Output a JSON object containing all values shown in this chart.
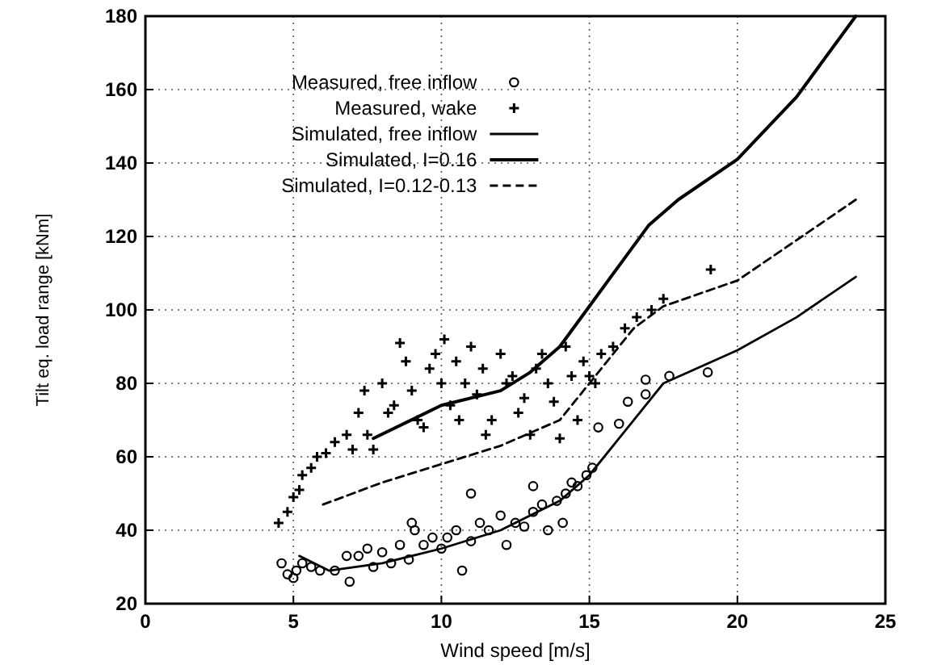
{
  "chart_data": {
    "type": "scatter",
    "xlabel": "Wind speed [m/s]",
    "ylabel": "Tilt eq. load range [kNm]",
    "xlim": [
      0,
      25
    ],
    "xticks": [
      0,
      5,
      10,
      15,
      20,
      25
    ],
    "ylim": [
      20,
      180
    ],
    "yticks": [
      20,
      40,
      60,
      80,
      100,
      120,
      140,
      160,
      180
    ],
    "grid": true,
    "legend": "top left",
    "series": [
      {
        "name": "Measured, free inflow",
        "marker": "circle",
        "color": "#000000",
        "x": [
          4.6,
          4.8,
          5.0,
          5.1,
          5.3,
          5.6,
          5.9,
          6.4,
          6.8,
          6.9,
          7.2,
          7.5,
          7.7,
          8.0,
          8.3,
          8.6,
          8.9,
          9.1,
          9.4,
          9.7,
          10.0,
          10.2,
          10.5,
          10.7,
          11.0,
          11.3,
          11.6,
          12.0,
          12.2,
          12.5,
          12.8,
          13.1,
          13.4,
          13.6,
          13.9,
          14.2,
          14.4,
          14.6,
          14.9,
          15.1,
          15.3,
          16.0,
          16.3,
          16.9,
          16.9,
          17.7,
          19.0,
          14.1,
          13.1,
          11.0,
          9.0
        ],
        "values": [
          31,
          28,
          27,
          29,
          31,
          30,
          29,
          29,
          33,
          26,
          33,
          35,
          30,
          34,
          31,
          36,
          32,
          40,
          36,
          38,
          35,
          38,
          40,
          29,
          37,
          42,
          40,
          44,
          36,
          42,
          41,
          45,
          47,
          40,
          48,
          50,
          53,
          52,
          55,
          57,
          68,
          69,
          75,
          81,
          77,
          82,
          83,
          42,
          52,
          50,
          42
        ]
      },
      {
        "name": "Measured, wake",
        "marker": "cross",
        "color": "#000000",
        "x": [
          4.5,
          4.8,
          5.0,
          5.2,
          5.3,
          5.6,
          5.8,
          6.1,
          6.4,
          6.8,
          7.0,
          7.2,
          7.4,
          7.5,
          7.7,
          8.0,
          8.2,
          8.4,
          8.6,
          8.8,
          9.0,
          9.2,
          9.4,
          9.6,
          9.8,
          10.0,
          10.1,
          10.3,
          10.5,
          10.6,
          10.8,
          11.0,
          11.2,
          11.4,
          11.5,
          11.7,
          12.0,
          12.2,
          12.4,
          12.6,
          12.8,
          13.0,
          13.2,
          13.4,
          13.6,
          13.8,
          14.0,
          14.2,
          14.4,
          14.6,
          14.8,
          15.0,
          15.2,
          15.4,
          15.8,
          16.2,
          16.6,
          17.1,
          17.5,
          19.1
        ],
        "values": [
          42,
          45,
          49,
          51,
          55,
          57,
          60,
          61,
          64,
          66,
          62,
          72,
          78,
          66,
          62,
          80,
          72,
          74,
          91,
          86,
          78,
          70,
          68,
          84,
          88,
          80,
          92,
          74,
          86,
          70,
          80,
          90,
          77,
          84,
          66,
          70,
          88,
          80,
          82,
          72,
          76,
          66,
          84,
          88,
          80,
          75,
          65,
          90,
          82,
          70,
          86,
          82,
          80,
          88,
          90,
          95,
          98,
          100,
          103,
          111
        ]
      },
      {
        "name": "Simulated, free inflow",
        "type": "line",
        "line_style": "solid",
        "color": "#000000",
        "x": [
          5.2,
          6.2,
          8,
          10,
          12,
          14,
          15,
          15.5,
          17.5,
          20,
          22,
          24
        ],
        "values": [
          33,
          29,
          31,
          35,
          40,
          48,
          55,
          60,
          80,
          89,
          98,
          109
        ]
      },
      {
        "name": "Simulated, I=0.16",
        "type": "line",
        "line_style": "solid",
        "color": "#000000",
        "x": [
          7.7,
          10,
          12,
          13,
          14,
          15,
          16,
          17,
          18,
          20,
          22,
          24
        ],
        "values": [
          65,
          74,
          78,
          83,
          90,
          101,
          112,
          123,
          130,
          141,
          158,
          180
        ]
      },
      {
        "name": "Simulated, I=0.12-0.13",
        "type": "line",
        "line_style": "dashed",
        "color": "#000000",
        "x": [
          6,
          8,
          10,
          12,
          14,
          15,
          15.5,
          16.5,
          17.5,
          20,
          24
        ],
        "values": [
          47,
          53,
          58,
          63,
          70,
          80,
          85,
          95,
          101,
          108,
          130
        ]
      }
    ]
  }
}
